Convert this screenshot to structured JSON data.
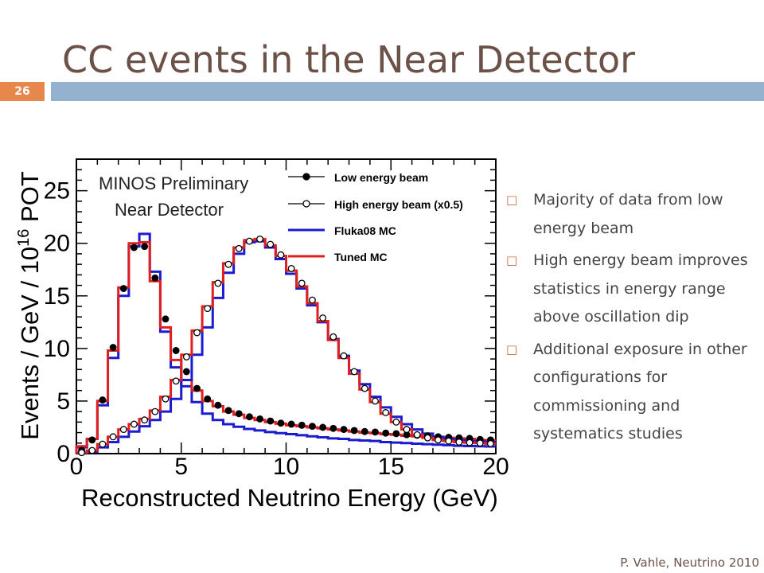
{
  "slide": {
    "title": "CC events in the Near Detector",
    "page_number": "26",
    "footer": "P. Vahle, Neutrino 2010",
    "bullets": [
      "Majority of data from low energy beam",
      "High energy beam improves statistics in energy range above oscillation dip",
      "Additional exposure in other configurations for commissioning and systematics studies"
    ],
    "colors": {
      "title": "#6b5147",
      "badge": "#e8874b",
      "bar": "#94b1cf",
      "bullet_mark": "#c46a3f"
    },
    "bullet_icon": "hollow-square-icon"
  },
  "chart_data": {
    "type": "line",
    "xlabel": "Reconstructed Neutrino Energy (GeV)",
    "ylabel_main": "Events / GeV / 10",
    "ylabel_sup": "16",
    "ylabel_end": " POT",
    "annotation": [
      "MINOS Preliminary",
      "Near Detector"
    ],
    "xlim": [
      0,
      20
    ],
    "ylim": [
      0,
      28
    ],
    "xticks": [
      0,
      5,
      10,
      15,
      20
    ],
    "yticks": [
      0,
      5,
      10,
      15,
      20,
      25
    ],
    "legend": [
      {
        "label": "Low energy beam",
        "style": "filled-marker"
      },
      {
        "label": "High energy beam (x0.5)",
        "style": "open-marker"
      },
      {
        "label": "Fluka08 MC",
        "style": "line",
        "color": "#1b1bcf"
      },
      {
        "label": "Tuned MC",
        "style": "line",
        "color": "#e02020"
      }
    ],
    "bin_edges": [
      0,
      0.5,
      1,
      1.5,
      2,
      2.5,
      3,
      3.5,
      4,
      4.5,
      5,
      5.5,
      6,
      6.5,
      7,
      7.5,
      8,
      8.5,
      9,
      9.5,
      10,
      10.5,
      11,
      11.5,
      12,
      12.5,
      13,
      13.5,
      14,
      14.5,
      15,
      15.5,
      16,
      16.5,
      17,
      17.5,
      18,
      18.5,
      19,
      19.5,
      20
    ],
    "series": [
      {
        "name": "Low energy beam",
        "kind": "points",
        "fill": "filled",
        "values": [
          0.3,
          1.3,
          5.1,
          10.1,
          15.7,
          19.6,
          19.7,
          16.7,
          12.8,
          9.8,
          7.8,
          6.2,
          5.2,
          4.6,
          4.1,
          3.8,
          3.5,
          3.3,
          3.1,
          2.9,
          2.8,
          2.7,
          2.6,
          2.5,
          2.4,
          2.3,
          2.2,
          2.1,
          2.05,
          1.95,
          1.9,
          1.8,
          1.75,
          1.7,
          1.6,
          1.55,
          1.5,
          1.45,
          1.35,
          1.3
        ]
      },
      {
        "name": "High energy beam (x0.5)",
        "kind": "points",
        "fill": "open",
        "values": [
          0.1,
          0.3,
          0.9,
          1.6,
          2.3,
          2.8,
          3.2,
          4.0,
          5.2,
          6.9,
          9.2,
          11.5,
          13.8,
          16.2,
          18.0,
          19.5,
          20.2,
          20.4,
          19.9,
          18.9,
          17.6,
          16.2,
          14.6,
          12.9,
          11.1,
          9.3,
          7.8,
          6.2,
          5.0,
          3.9,
          3.0,
          2.3,
          1.8,
          1.5,
          1.3,
          1.2,
          1.1,
          1.05,
          1.0,
          0.95
        ]
      },
      {
        "name": "Fluka08 MC",
        "kind": "step",
        "color": "#1b1bcf",
        "values": [
          0.6,
          1.4,
          4.6,
          9.1,
          15.0,
          19.7,
          20.9,
          17.3,
          11.6,
          8.2,
          6.4,
          4.9,
          3.8,
          3.2,
          2.8,
          2.55,
          2.35,
          2.2,
          2.05,
          1.95,
          1.85,
          1.75,
          1.65,
          1.55,
          1.45,
          1.4,
          1.3,
          1.25,
          1.2,
          1.1,
          1.05,
          1.0,
          0.95,
          0.9,
          0.85,
          0.8,
          0.75,
          0.72,
          0.7,
          0.68
        ]
      },
      {
        "name": "Tuned MC",
        "kind": "step",
        "color": "#e02020",
        "values": [
          0.7,
          1.4,
          5.0,
          9.8,
          15.8,
          20.0,
          20.1,
          16.4,
          12.0,
          8.9,
          7.0,
          6.0,
          5.0,
          4.5,
          4.0,
          3.7,
          3.4,
          3.2,
          3.0,
          2.85,
          2.7,
          2.6,
          2.5,
          2.4,
          2.3,
          2.2,
          2.1,
          2.0,
          1.95,
          1.85,
          1.8,
          1.7,
          1.65,
          1.6,
          1.55,
          1.5,
          1.45,
          1.4,
          1.3,
          1.25
        ]
      },
      {
        "name": "Fluka08 MC high energy",
        "kind": "step",
        "color": "#1b1bcf",
        "values": [
          0.1,
          0.2,
          0.6,
          1.1,
          1.6,
          2.1,
          2.6,
          3.2,
          4.0,
          5.2,
          7.0,
          9.4,
          12.0,
          14.8,
          17.2,
          19.0,
          20.1,
          20.2,
          19.6,
          18.5,
          17.1,
          15.7,
          14.1,
          12.5,
          10.9,
          9.3,
          7.9,
          6.6,
          5.4,
          4.4,
          3.5,
          2.8,
          2.3,
          1.9,
          1.6,
          1.4,
          1.3,
          1.2,
          1.15,
          1.1
        ]
      },
      {
        "name": "Tuned MC high energy",
        "kind": "step",
        "color": "#e02020",
        "values": [
          0.1,
          0.3,
          0.9,
          1.6,
          2.3,
          2.8,
          3.3,
          4.1,
          5.4,
          7.0,
          9.4,
          11.7,
          14.0,
          16.3,
          18.1,
          19.6,
          20.3,
          20.4,
          19.8,
          18.8,
          17.4,
          15.9,
          14.3,
          12.6,
          10.8,
          9.1,
          7.6,
          6.1,
          4.9,
          3.8,
          3.0,
          2.3,
          1.8,
          1.5,
          1.3,
          1.2,
          1.1,
          1.05,
          1.0,
          0.95
        ]
      }
    ]
  }
}
